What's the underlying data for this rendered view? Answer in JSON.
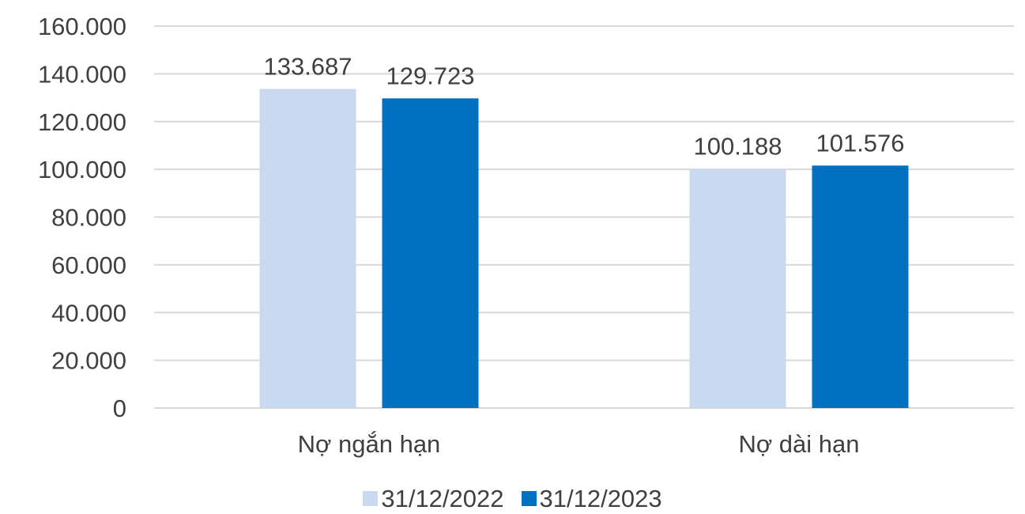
{
  "chart_data": {
    "type": "bar",
    "categories": [
      "Nợ ngắn hạn",
      "Nợ dài hạn"
    ],
    "series": [
      {
        "name": "31/12/2022",
        "values": [
          133687,
          100188
        ],
        "labels": [
          "133.687",
          "100.188"
        ],
        "color": "#c9d9ef"
      },
      {
        "name": "31/12/2023",
        "values": [
          129723,
          101576
        ],
        "labels": [
          "129.723",
          "101.576"
        ],
        "color": "#0070c0"
      }
    ],
    "ylim": [
      0,
      160000
    ],
    "yticks": [
      0,
      20000,
      40000,
      60000,
      80000,
      100000,
      120000,
      140000,
      160000
    ],
    "ytick_labels": [
      "0",
      "20.000",
      "40.000",
      "60.000",
      "80.000",
      "100.000",
      "120.000",
      "140.000",
      "160.000"
    ],
    "grid": true,
    "legend_position": "bottom",
    "title": "",
    "xlabel": "",
    "ylabel": ""
  }
}
